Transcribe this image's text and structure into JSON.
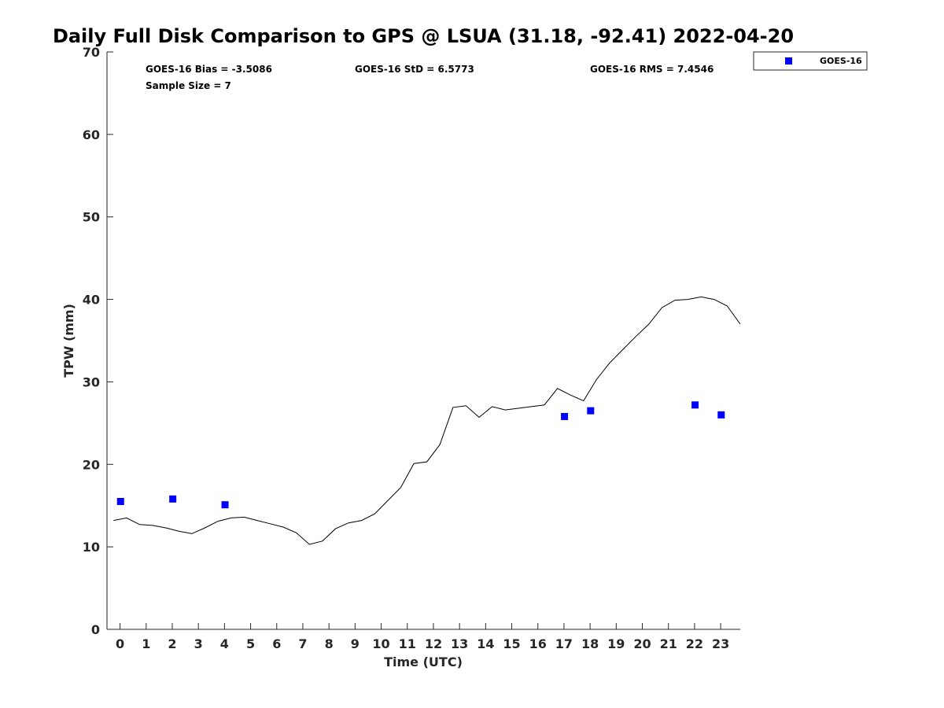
{
  "chart_data": {
    "type": "scatter",
    "title": "Daily Full Disk Comparison to GPS @ LSUA (31.18, -92.41) 2022-04-20",
    "xlabel": "Time (UTC)",
    "ylabel": "TPW (mm)",
    "xlim": [
      -0.5,
      23.75
    ],
    "ylim": [
      0,
      70
    ],
    "x_ticks": [
      0,
      1,
      2,
      3,
      4,
      5,
      6,
      7,
      8,
      9,
      10,
      11,
      12,
      13,
      14,
      15,
      16,
      17,
      18,
      19,
      20,
      21,
      22,
      23
    ],
    "y_ticks": [
      0,
      10,
      20,
      30,
      40,
      50,
      60,
      70
    ],
    "grid": false,
    "legend_position": "top-right",
    "stats": {
      "bias": "GOES-16 Bias = -3.5086",
      "std": "GOES-16 StD = 6.5773",
      "rms": "GOES-16 RMS = 7.4546",
      "sample_size": "Sample Size = 7"
    },
    "colors": {
      "goes": "#0000ff",
      "gps": "#000000",
      "axis": "#262626"
    },
    "series": [
      {
        "name": "GOES-16",
        "kind": "scatter",
        "marker": "square",
        "points": [
          [
            0.02,
            15.5
          ],
          [
            2.02,
            15.8
          ],
          [
            4.02,
            15.1
          ],
          [
            17.02,
            25.8
          ],
          [
            18.02,
            26.5
          ],
          [
            22.02,
            27.2
          ],
          [
            23.02,
            26.0
          ]
        ]
      },
      {
        "kind": "line",
        "points": [
          [
            -0.25,
            13.2
          ],
          [
            0.25,
            13.5
          ],
          [
            0.75,
            12.7
          ],
          [
            1.25,
            12.6
          ],
          [
            1.75,
            12.3
          ],
          [
            2.25,
            11.9
          ],
          [
            2.75,
            11.6
          ],
          [
            3.25,
            12.3
          ],
          [
            3.75,
            13.1
          ],
          [
            4.25,
            13.5
          ],
          [
            4.75,
            13.6
          ],
          [
            5.25,
            13.2
          ],
          [
            5.75,
            12.8
          ],
          [
            6.25,
            12.4
          ],
          [
            6.75,
            11.7
          ],
          [
            7.25,
            10.3
          ],
          [
            7.75,
            10.7
          ],
          [
            8.25,
            12.2
          ],
          [
            8.75,
            12.9
          ],
          [
            9.25,
            13.2
          ],
          [
            9.75,
            14.0
          ],
          [
            10.25,
            15.6
          ],
          [
            10.75,
            17.2
          ],
          [
            11.25,
            20.1
          ],
          [
            11.75,
            20.3
          ],
          [
            12.25,
            22.4
          ],
          [
            12.75,
            26.9
          ],
          [
            13.25,
            27.1
          ],
          [
            13.75,
            25.7
          ],
          [
            14.25,
            27.0
          ],
          [
            14.75,
            26.6
          ],
          [
            15.25,
            26.8
          ],
          [
            15.75,
            27.0
          ],
          [
            16.25,
            27.2
          ],
          [
            16.75,
            29.2
          ],
          [
            17.25,
            28.4
          ],
          [
            17.75,
            27.7
          ],
          [
            18.25,
            30.3
          ],
          [
            18.75,
            32.3
          ],
          [
            19.25,
            33.9
          ],
          [
            19.75,
            35.5
          ],
          [
            20.25,
            37.0
          ],
          [
            20.75,
            39.0
          ],
          [
            21.25,
            39.9
          ],
          [
            21.75,
            40.0
          ],
          [
            22.25,
            40.3
          ],
          [
            22.75,
            40.0
          ],
          [
            23.25,
            39.2
          ],
          [
            23.75,
            37.0
          ]
        ]
      }
    ]
  }
}
